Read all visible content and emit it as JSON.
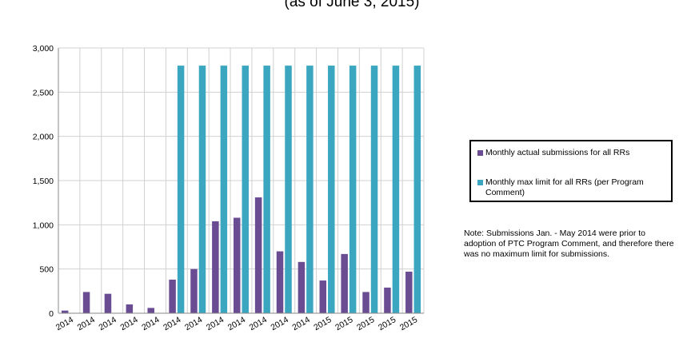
{
  "title_line": "(as of June 3, 2015)",
  "colors": {
    "actual": "#6a4c93",
    "max": "#3ba6c0",
    "grid": "#d0d0d0",
    "axis": "#888888"
  },
  "legend": [
    {
      "label": "Monthly actual submissions for all RRs",
      "color": "#6a4c93"
    },
    {
      "label": "Monthly max limit for all RRs (per Program Comment)",
      "color": "#3ba6c0"
    }
  ],
  "note": "Note: Submissions Jan. - May 2014 were prior to adoption of PTC Program Comment, and therefore there was no maximum limit for submissions.",
  "chart_data": {
    "type": "bar",
    "categories": [
      "2014",
      "2014",
      "2014",
      "2014",
      "2014",
      "2014",
      "2014",
      "2014",
      "2014",
      "2014",
      "2014",
      "2014",
      "2015",
      "2015",
      "2015",
      "2015",
      "2015"
    ],
    "ylim": [
      0,
      3000
    ],
    "yticks": [
      0,
      500,
      1000,
      1500,
      2000,
      2500,
      3000
    ],
    "ytick_labels": [
      "0",
      "500",
      "1,000",
      "1,500",
      "2,000",
      "2,500",
      "3,000"
    ],
    "grid": true,
    "legend_position": "right",
    "series": [
      {
        "name": "Monthly actual submissions for all RRs",
        "values": [
          30,
          240,
          220,
          100,
          60,
          380,
          500,
          1040,
          1080,
          1310,
          700,
          580,
          370,
          670,
          240,
          290,
          470
        ]
      },
      {
        "name": "Monthly max limit for all RRs (per Program Comment)",
        "values": [
          0,
          0,
          0,
          0,
          0,
          2800,
          2800,
          2800,
          2800,
          2800,
          2800,
          2800,
          2800,
          2800,
          2800,
          2800,
          2800
        ]
      }
    ]
  }
}
